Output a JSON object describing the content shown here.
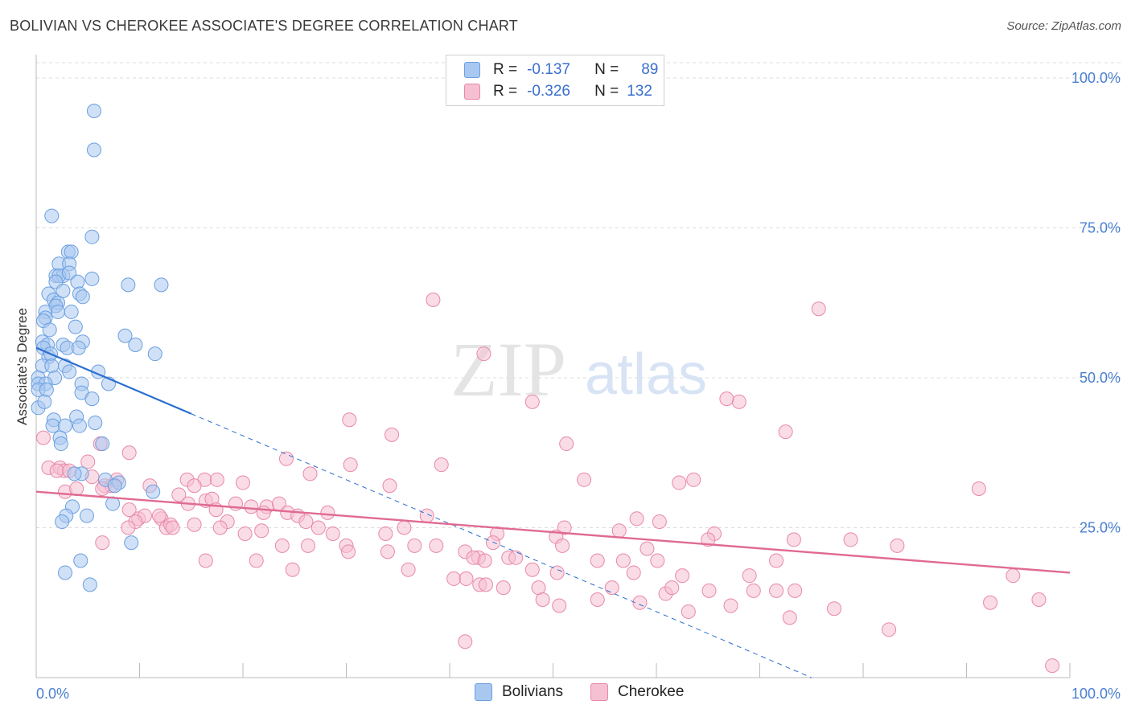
{
  "title": "BOLIVIAN VS CHEROKEE ASSOCIATE'S DEGREE CORRELATION CHART",
  "source": "Source: ZipAtlas.com",
  "watermark": {
    "zip": "ZIP",
    "atlas": "atlas"
  },
  "legend": {
    "rows": [
      {
        "r_label": "R =",
        "r_value": "-0.137",
        "n_label": "N =",
        "n_value": "89"
      },
      {
        "r_label": "R =",
        "r_value": "-0.326",
        "n_label": "N =",
        "n_value": "132"
      }
    ]
  },
  "bottom_legend": {
    "bolivians": "Bolivians",
    "cherokee": "Cherokee"
  },
  "colors": {
    "blue_fill": "#a9c8f0",
    "blue_stroke": "#6a9fe0",
    "blue_line": "#2a6fd0",
    "pink_fill": "#f5c0d2",
    "pink_stroke": "#e888a8",
    "pink_line": "#e06a92",
    "grid": "#dcdcdc",
    "axis": "#bbbbbb",
    "tick_label": "#4a7fd0"
  },
  "chart_data": {
    "type": "scatter",
    "title": "BOLIVIAN VS CHEROKEE ASSOCIATE'S DEGREE CORRELATION CHART",
    "xlabel": "",
    "ylabel": "Associate's Degree",
    "xlim": [
      0,
      100
    ],
    "ylim": [
      0,
      100
    ],
    "x_tick_labels": [
      "0.0%",
      "100.0%"
    ],
    "y_tick_values": [
      25,
      50,
      75,
      100
    ],
    "y_tick_labels": [
      "25.0%",
      "50.0%",
      "75.0%",
      "100.0%"
    ],
    "grid": true,
    "series": [
      {
        "name": "Bolivians",
        "r": -0.137,
        "n": 89,
        "trend": {
          "x0": 0,
          "y0": 55.0,
          "x1": 15,
          "y1": 44.0,
          "dashed_to_x": 75,
          "dashed_to_y": 0
        },
        "points": [
          [
            5.6,
            94.5
          ],
          [
            5.6,
            88
          ],
          [
            1.5,
            77
          ],
          [
            5.4,
            73.5
          ],
          [
            3.1,
            71
          ],
          [
            3.4,
            71
          ],
          [
            2.2,
            69
          ],
          [
            3.2,
            69
          ],
          [
            1.9,
            67
          ],
          [
            2.6,
            67
          ],
          [
            2.2,
            67
          ],
          [
            3.2,
            67.5
          ],
          [
            5.4,
            66.5
          ],
          [
            4.0,
            66
          ],
          [
            1.9,
            66
          ],
          [
            8.9,
            65.5
          ],
          [
            12.1,
            65.5
          ],
          [
            1.2,
            64
          ],
          [
            1.7,
            63
          ],
          [
            2.6,
            64.5
          ],
          [
            4.2,
            64
          ],
          [
            4.5,
            63.5
          ],
          [
            2.1,
            62.5
          ],
          [
            1.9,
            62
          ],
          [
            0.9,
            61
          ],
          [
            3.4,
            61
          ],
          [
            0.9,
            60
          ],
          [
            2.1,
            61
          ],
          [
            0.7,
            59.5
          ],
          [
            1.3,
            58
          ],
          [
            3.8,
            58.5
          ],
          [
            8.6,
            57
          ],
          [
            0.6,
            56
          ],
          [
            1.1,
            55.5
          ],
          [
            2.6,
            55.5
          ],
          [
            4.5,
            56
          ],
          [
            0.7,
            55
          ],
          [
            3.0,
            55
          ],
          [
            4.1,
            55
          ],
          [
            9.6,
            55.5
          ],
          [
            1.2,
            53.5
          ],
          [
            1.4,
            54
          ],
          [
            11.5,
            54
          ],
          [
            0.6,
            52
          ],
          [
            1.5,
            52
          ],
          [
            2.8,
            52
          ],
          [
            3.2,
            51
          ],
          [
            6.0,
            51
          ],
          [
            1.8,
            50
          ],
          [
            0.2,
            50
          ],
          [
            0.2,
            49
          ],
          [
            0.9,
            49
          ],
          [
            4.4,
            49
          ],
          [
            7.0,
            49
          ],
          [
            0.2,
            48
          ],
          [
            1.0,
            48
          ],
          [
            4.4,
            47.5
          ],
          [
            5.4,
            46.5
          ],
          [
            0.2,
            45
          ],
          [
            0.8,
            46
          ],
          [
            3.9,
            43.5
          ],
          [
            1.7,
            43
          ],
          [
            1.6,
            42
          ],
          [
            5.7,
            42.5
          ],
          [
            2.8,
            42
          ],
          [
            4.2,
            42
          ],
          [
            2.3,
            40
          ],
          [
            6.4,
            39
          ],
          [
            2.4,
            39
          ],
          [
            4.4,
            34
          ],
          [
            3.7,
            34
          ],
          [
            6.7,
            33
          ],
          [
            8.0,
            32.5
          ],
          [
            7.6,
            32
          ],
          [
            11.3,
            31
          ],
          [
            7.4,
            29
          ],
          [
            3.5,
            28.5
          ],
          [
            2.9,
            27
          ],
          [
            4.9,
            27
          ],
          [
            2.5,
            26
          ],
          [
            9.2,
            22.5
          ],
          [
            4.3,
            19.5
          ],
          [
            2.8,
            17.5
          ],
          [
            5.2,
            15.5
          ]
        ]
      },
      {
        "name": "Cherokee",
        "r": -0.326,
        "n": 132,
        "trend": {
          "x0": 0,
          "y0": 31.0,
          "x1": 100,
          "y1": 17.5
        },
        "points": [
          [
            38.4,
            63
          ],
          [
            75.7,
            61.5
          ],
          [
            43.3,
            54
          ],
          [
            48.0,
            46
          ],
          [
            68.0,
            46
          ],
          [
            66.8,
            46.5
          ],
          [
            30.3,
            43
          ],
          [
            34.4,
            40.5
          ],
          [
            72.5,
            41
          ],
          [
            51.3,
            39
          ],
          [
            6.2,
            39
          ],
          [
            0.7,
            40
          ],
          [
            9.0,
            37.5
          ],
          [
            24.2,
            36.5
          ],
          [
            30.4,
            35.5
          ],
          [
            39.2,
            35.5
          ],
          [
            1.2,
            35
          ],
          [
            2.3,
            35
          ],
          [
            2.7,
            34.5
          ],
          [
            2.0,
            34.5
          ],
          [
            3.2,
            34.5
          ],
          [
            5.0,
            36
          ],
          [
            26.5,
            34
          ],
          [
            7.8,
            33
          ],
          [
            5.4,
            33.5
          ],
          [
            14.6,
            33
          ],
          [
            16.3,
            33
          ],
          [
            17.5,
            33
          ],
          [
            20.0,
            32.5
          ],
          [
            6.6,
            32
          ],
          [
            7.3,
            32
          ],
          [
            11.0,
            32
          ],
          [
            15.3,
            32
          ],
          [
            6.4,
            31.5
          ],
          [
            34.2,
            32
          ],
          [
            53.0,
            33
          ],
          [
            63.6,
            33
          ],
          [
            91.2,
            31.5
          ],
          [
            62.2,
            32.5
          ],
          [
            2.8,
            31
          ],
          [
            3.9,
            31.5
          ],
          [
            13.8,
            30.5
          ],
          [
            16.4,
            29.5
          ],
          [
            17.0,
            29.8
          ],
          [
            14.7,
            29
          ],
          [
            19.3,
            29
          ],
          [
            20.8,
            28.5
          ],
          [
            22.3,
            28.5
          ],
          [
            23.5,
            29
          ],
          [
            9.0,
            28
          ],
          [
            17.4,
            28
          ],
          [
            22.0,
            27.5
          ],
          [
            24.3,
            27.5
          ],
          [
            28.2,
            27.5
          ],
          [
            37.8,
            27
          ],
          [
            25.3,
            27
          ],
          [
            12.1,
            26.5
          ],
          [
            9.9,
            26.5
          ],
          [
            11.9,
            27
          ],
          [
            10.5,
            27
          ],
          [
            9.6,
            26
          ],
          [
            8.9,
            25
          ],
          [
            58.1,
            26.5
          ],
          [
            60.3,
            26
          ],
          [
            12.6,
            25
          ],
          [
            13.0,
            25.5
          ],
          [
            15.3,
            25.5
          ],
          [
            18.5,
            26
          ],
          [
            26.1,
            26
          ],
          [
            27.3,
            25
          ],
          [
            35.6,
            25
          ],
          [
            51.1,
            25
          ],
          [
            56.4,
            24.5
          ],
          [
            13.2,
            25
          ],
          [
            17.8,
            25
          ],
          [
            20.2,
            24
          ],
          [
            21.8,
            24.5
          ],
          [
            28.7,
            24
          ],
          [
            33.8,
            24
          ],
          [
            44.6,
            24
          ],
          [
            65.6,
            24
          ],
          [
            50.3,
            23.5
          ],
          [
            65.0,
            23
          ],
          [
            73.3,
            23
          ],
          [
            78.8,
            23
          ],
          [
            83.3,
            22
          ],
          [
            6.4,
            22.5
          ],
          [
            26.3,
            22
          ],
          [
            30.0,
            22
          ],
          [
            36.6,
            22
          ],
          [
            38.7,
            22
          ],
          [
            44.2,
            22.5
          ],
          [
            50.9,
            22
          ],
          [
            59.1,
            21.5
          ],
          [
            34.0,
            21
          ],
          [
            30.2,
            21
          ],
          [
            23.8,
            22
          ],
          [
            41.5,
            21
          ],
          [
            42.8,
            20
          ],
          [
            45.7,
            20
          ],
          [
            46.4,
            20
          ],
          [
            16.4,
            19.5
          ],
          [
            21.3,
            19.5
          ],
          [
            42.3,
            20
          ],
          [
            43.4,
            19.5
          ],
          [
            54.3,
            19.5
          ],
          [
            56.8,
            19.5
          ],
          [
            60.1,
            19.5
          ],
          [
            71.6,
            19.5
          ],
          [
            24.8,
            18
          ],
          [
            36.0,
            18
          ],
          [
            48.0,
            18
          ],
          [
            50.4,
            17.5
          ],
          [
            57.8,
            17.5
          ],
          [
            62.5,
            17
          ],
          [
            69.0,
            17
          ],
          [
            94.5,
            17
          ],
          [
            40.4,
            16.5
          ],
          [
            41.6,
            16.5
          ],
          [
            42.9,
            15.5
          ],
          [
            43.5,
            15.5
          ],
          [
            45.2,
            15
          ],
          [
            48.6,
            15
          ],
          [
            55.7,
            15
          ],
          [
            60.9,
            14
          ],
          [
            61.5,
            15
          ],
          [
            65.1,
            14.5
          ],
          [
            69.4,
            14.5
          ],
          [
            71.6,
            14.5
          ],
          [
            73.4,
            14.5
          ],
          [
            54.3,
            13
          ],
          [
            49.0,
            13
          ],
          [
            58.4,
            12.5
          ],
          [
            50.6,
            12
          ],
          [
            63.1,
            11
          ],
          [
            67.2,
            12
          ],
          [
            72.9,
            10
          ],
          [
            77.2,
            11.5
          ],
          [
            82.5,
            8
          ],
          [
            97.0,
            13
          ],
          [
            92.3,
            12.5
          ],
          [
            41.5,
            6
          ],
          [
            98.3,
            2
          ]
        ]
      }
    ]
  }
}
